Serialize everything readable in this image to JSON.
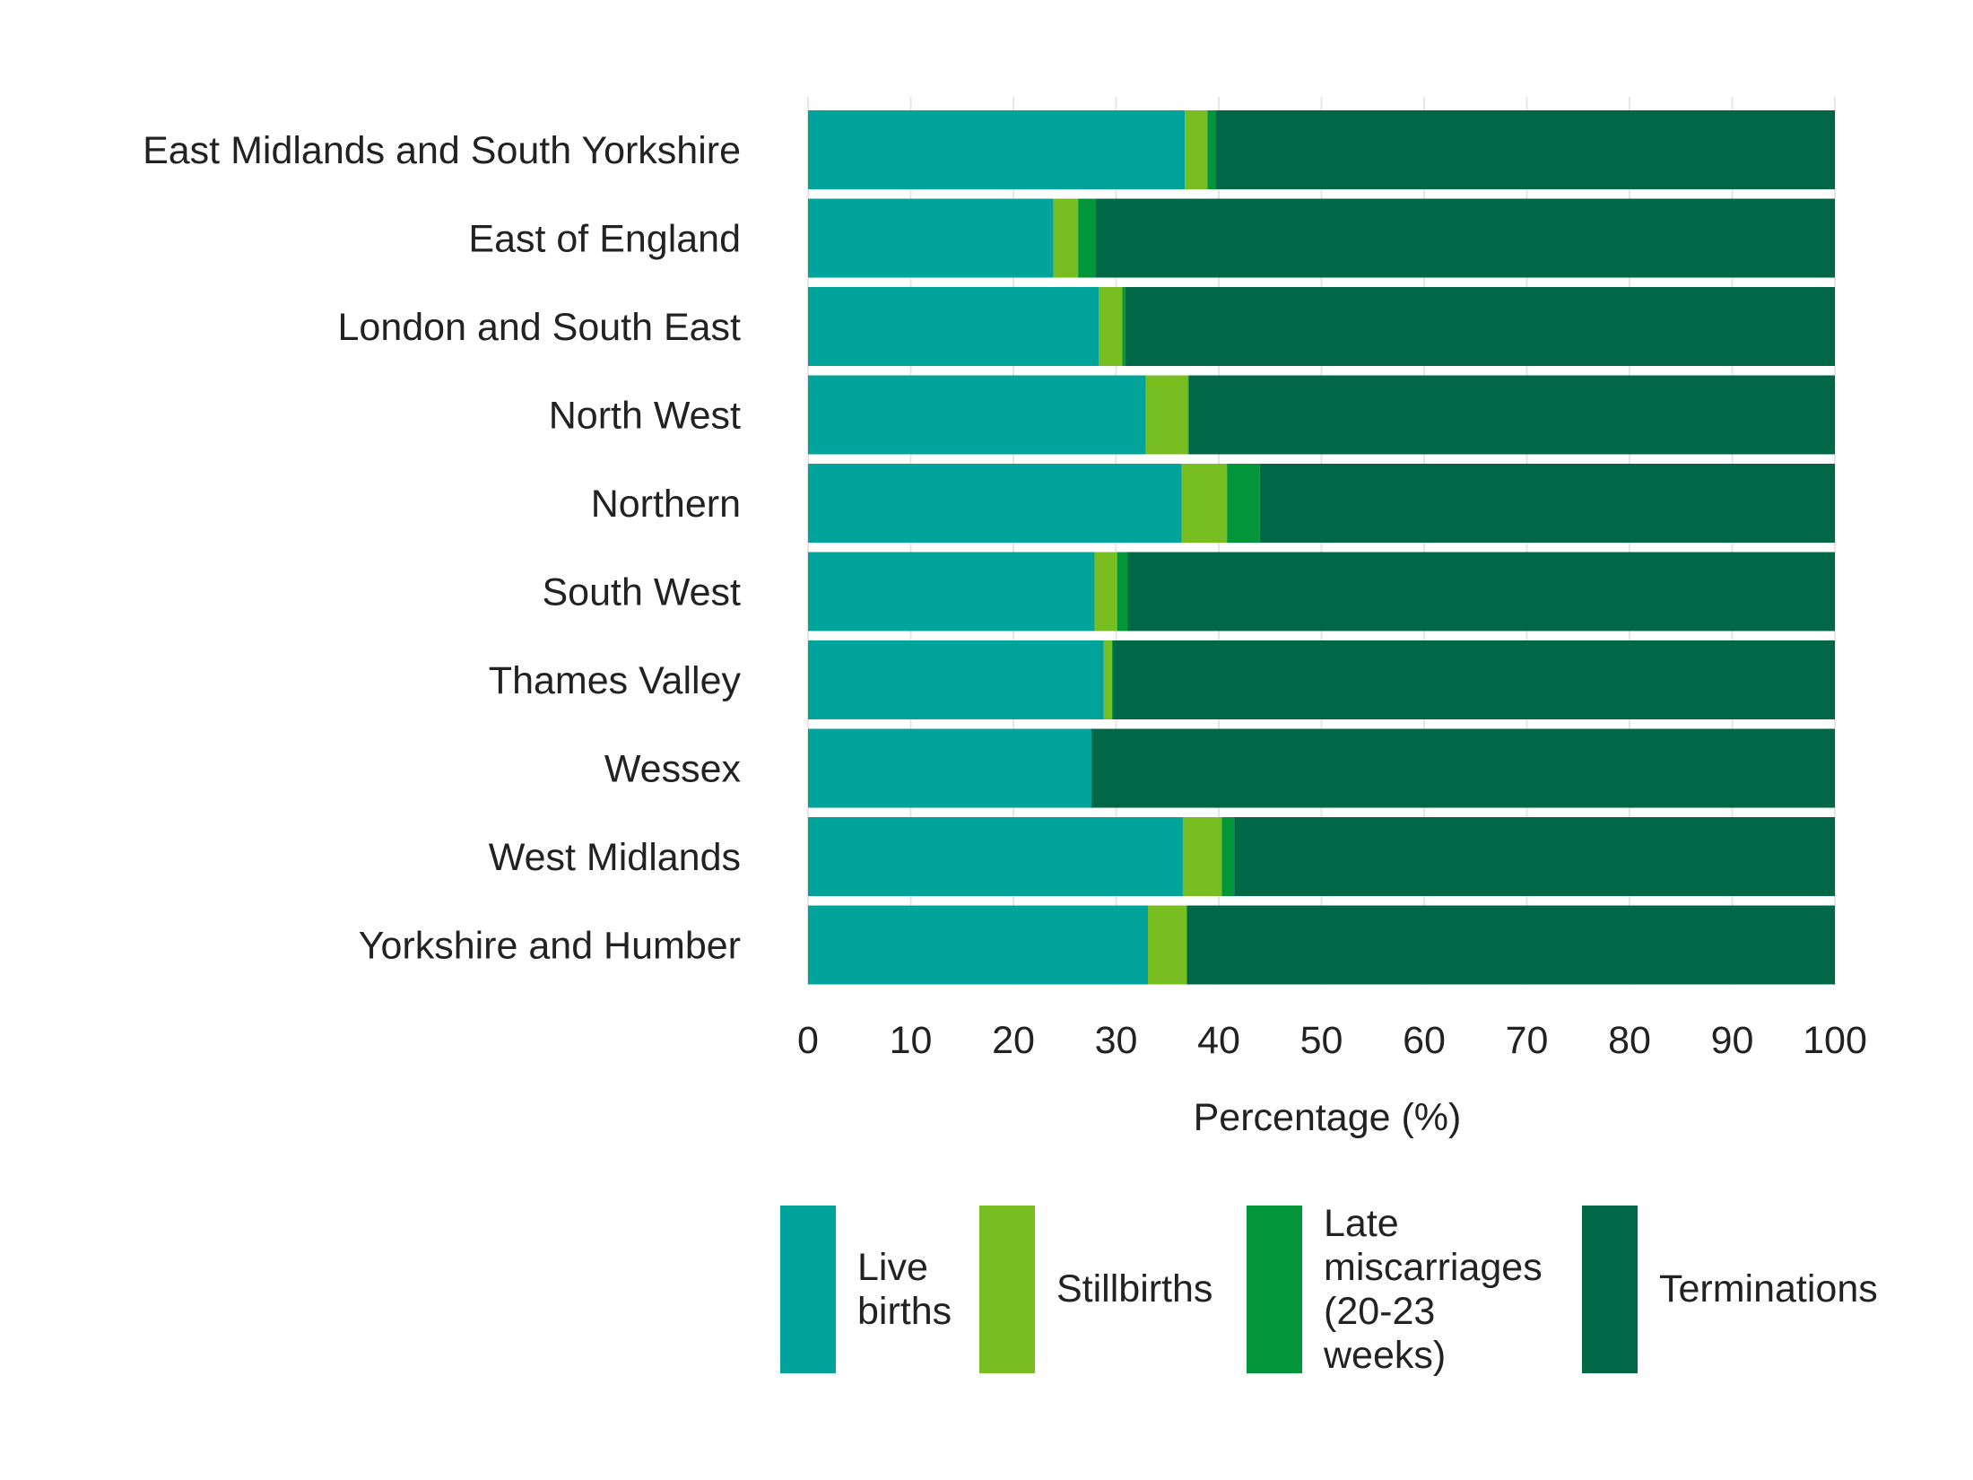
{
  "chart_data": {
    "type": "bar",
    "orientation": "horizontal",
    "stacked": true,
    "categories": [
      "East Midlands and South Yorkshire",
      "East of England",
      "London and South East",
      "North West",
      "Northern",
      "South West",
      "Thames Valley",
      "Wessex",
      "West Midlands",
      "Yorkshire and Humber"
    ],
    "series": [
      {
        "name": "Live births",
        "color": "#00a49a",
        "values": [
          36.7,
          23.9,
          28.3,
          32.9,
          36.4,
          27.9,
          28.8,
          27.6,
          36.5,
          33.1
        ]
      },
      {
        "name": "Stillbirths",
        "color": "#78be20",
        "values": [
          2.2,
          2.4,
          2.3,
          4.1,
          4.4,
          2.2,
          0.8,
          0.0,
          3.8,
          3.8
        ]
      },
      {
        "name": "Late miscarriages (20-23 weeks)",
        "color": "#009639",
        "values": [
          0.8,
          1.7,
          0.3,
          0.1,
          3.2,
          1.0,
          0.1,
          0.0,
          1.2,
          0.0
        ]
      },
      {
        "name": "Terminations",
        "color": "#006747",
        "values": [
          60.3,
          72.0,
          69.1,
          62.9,
          56.0,
          68.9,
          70.3,
          72.4,
          58.5,
          63.1
        ]
      }
    ],
    "xlabel": "Percentage (%)",
    "ylabel": "",
    "xlim": [
      0,
      100
    ],
    "xticks": [
      "0",
      "10",
      "20",
      "30",
      "40",
      "50",
      "60",
      "70",
      "80",
      "90",
      "100"
    ],
    "grid": true,
    "legend_position": "bottom"
  }
}
